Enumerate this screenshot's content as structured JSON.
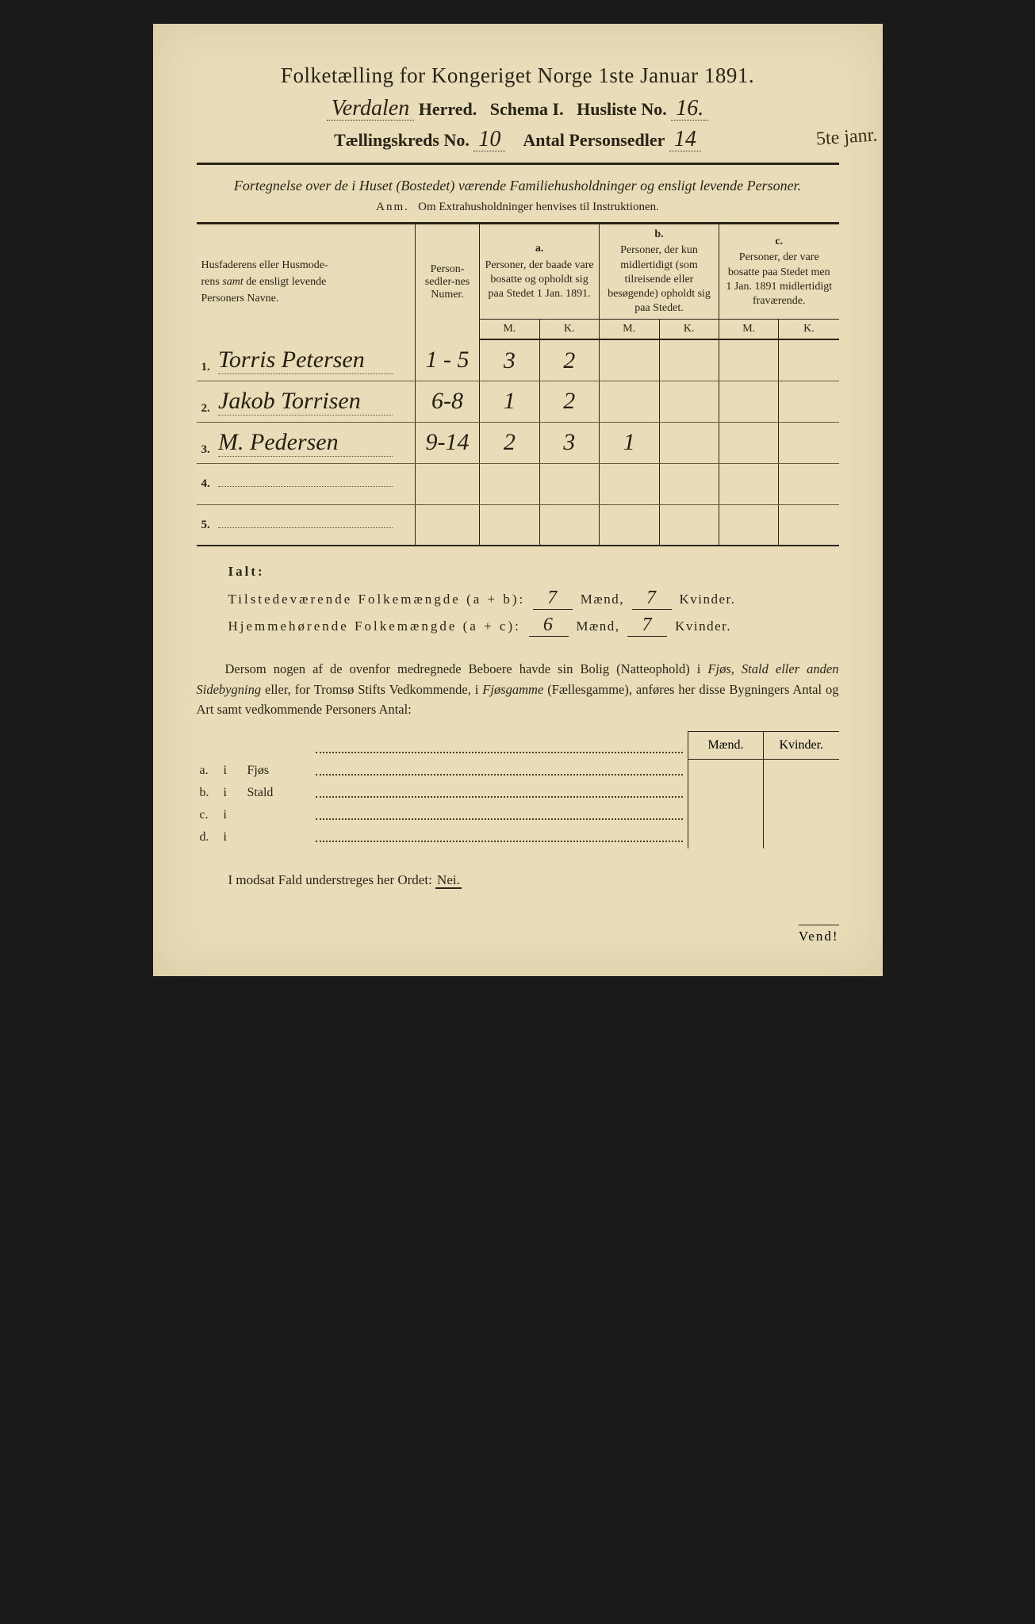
{
  "colors": {
    "paper": "#e8ddb8",
    "ink": "#2a2418",
    "handwriting": "#241d12",
    "frame": "#1a1a1a"
  },
  "title": "Folketælling for Kongeriget Norge 1ste Januar 1891.",
  "header": {
    "herred_value": "Verdalen",
    "herred_label": "Herred.",
    "schema_label": "Schema I.",
    "husliste_label": "Husliste No.",
    "husliste_value": "16.",
    "kreds_label": "Tællingskreds No.",
    "kreds_value": "10",
    "antal_label": "Antal Personsedler",
    "antal_value": "14",
    "margin_note": "5te janr."
  },
  "subhead": "Fortegnelse over de i Huset (Bostedet) værende Familiehusholdninger og ensligt levende Personer.",
  "anm": {
    "lead": "Anm.",
    "text": "Om Extrahusholdninger henvises til Instruktionen."
  },
  "columns": {
    "names": "Husfaderens eller Husmoderens samt de ensligt levende Personers Navne.",
    "numer": "Person-sedler-nes Numer.",
    "a": {
      "lbl": "a.",
      "text": "Personer, der baade vare bosatte og opholdt sig paa Stedet 1 Jan. 1891."
    },
    "b": {
      "lbl": "b.",
      "text": "Personer, der kun midlertidigt (som tilreisende eller besøgende) opholdt sig paa Stedet."
    },
    "c": {
      "lbl": "c.",
      "text": "Personer, der vare bosatte paa Stedet men 1 Jan. 1891 midlertidigt fraværende."
    },
    "M": "M.",
    "K": "K."
  },
  "rows": [
    {
      "n": "1.",
      "name": "Torris Petersen",
      "num": "1 - 5",
      "aM": "3",
      "aK": "2",
      "bM": "",
      "bK": "",
      "cM": "",
      "cK": ""
    },
    {
      "n": "2.",
      "name": "Jakob Torrisen",
      "num": "6-8",
      "aM": "1",
      "aK": "2",
      "bM": "",
      "bK": "",
      "cM": "",
      "cK": ""
    },
    {
      "n": "3.",
      "name": "M. Pedersen",
      "num": "9-14",
      "aM": "2",
      "aK": "3",
      "bM": "1",
      "bK": "",
      "cM": "",
      "cK": ""
    },
    {
      "n": "4.",
      "name": "",
      "num": "",
      "aM": "",
      "aK": "",
      "bM": "",
      "bK": "",
      "cM": "",
      "cK": ""
    },
    {
      "n": "5.",
      "name": "",
      "num": "",
      "aM": "",
      "aK": "",
      "bM": "",
      "bK": "",
      "cM": "",
      "cK": ""
    }
  ],
  "ialt": {
    "label": "Ialt:",
    "line1": {
      "text": "Tilstedeværende Folkemængde (a + b):",
      "maend": "7",
      "kvinder": "7",
      "maend_lbl": "Mænd,",
      "kvinder_lbl": "Kvinder."
    },
    "line2": {
      "text": "Hjemmehørende Folkemængde (a + c):",
      "maend": "6",
      "kvinder": "7",
      "maend_lbl": "Mænd,",
      "kvinder_lbl": "Kvinder."
    }
  },
  "para": "Dersom nogen af de ovenfor medregnede Beboere havde sin Bolig (Natteophold) i Fjøs, Stald eller anden Sidebygning eller, for Tromsø Stifts Vedkommende, i Fjøsgamme (Fællesgamme), anføres her disse Bygningers Antal og Art samt vedkommende Personers Antal:",
  "side": {
    "head_m": "Mænd.",
    "head_k": "Kvinder.",
    "rows": [
      {
        "lbl": "a.",
        "i": "i",
        "type": "Fjøs"
      },
      {
        "lbl": "b.",
        "i": "i",
        "type": "Stald"
      },
      {
        "lbl": "c.",
        "i": "i",
        "type": ""
      },
      {
        "lbl": "d.",
        "i": "i",
        "type": ""
      }
    ]
  },
  "nei_line": {
    "text": "I modsat Fald understreges her Ordet:",
    "nei": "Nei."
  },
  "vend": "Vend!"
}
